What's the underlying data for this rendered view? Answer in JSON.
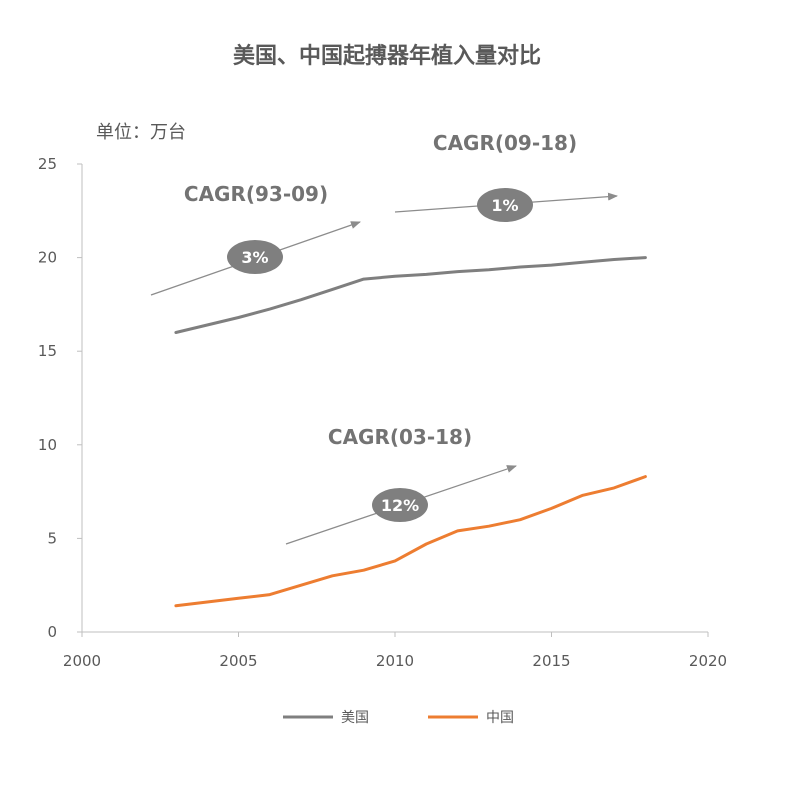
{
  "chart_data": {
    "type": "line",
    "title": "美国、中国起搏器年植入量对比",
    "unit_label": "单位：万台",
    "xlim": [
      2000,
      2020
    ],
    "ylim": [
      0,
      25
    ],
    "x_ticks": [
      2000,
      2005,
      2010,
      2015,
      2020
    ],
    "y_ticks": [
      0,
      5,
      10,
      15,
      20,
      25
    ],
    "grid": false,
    "legend_position": "bottom",
    "series": [
      {
        "name": "美国",
        "color": "#7f7f7f",
        "x": [
          2003,
          2004,
          2005,
          2006,
          2007,
          2008,
          2009,
          2010,
          2011,
          2012,
          2013,
          2014,
          2015,
          2016,
          2017,
          2018
        ],
        "values": [
          16.0,
          16.4,
          16.8,
          17.25,
          17.75,
          18.3,
          18.85,
          19.0,
          19.1,
          19.25,
          19.35,
          19.5,
          19.6,
          19.75,
          19.9,
          20.0
        ]
      },
      {
        "name": "中国",
        "color": "#ed7d31",
        "x": [
          2003,
          2004,
          2005,
          2006,
          2007,
          2008,
          2009,
          2010,
          2011,
          2012,
          2013,
          2014,
          2015,
          2016,
          2017,
          2018
        ],
        "values": [
          1.4,
          1.6,
          1.8,
          2.0,
          2.5,
          3.0,
          3.3,
          3.8,
          4.7,
          5.4,
          5.65,
          6.0,
          6.6,
          7.3,
          7.7,
          8.3
        ]
      }
    ],
    "annotations": [
      {
        "label": "CAGR(93-09)",
        "value": "3%"
      },
      {
        "label": "CAGR(09-18)",
        "value": "1%"
      },
      {
        "label": "CAGR(03-18)",
        "value": "12%"
      }
    ]
  }
}
